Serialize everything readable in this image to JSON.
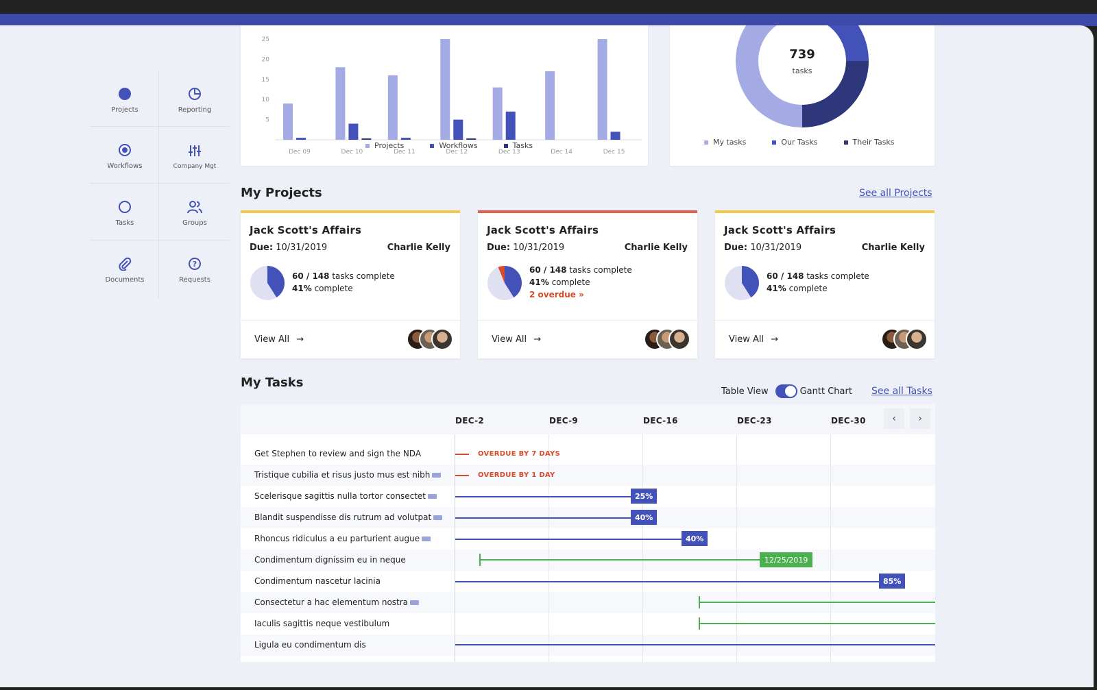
{
  "colors": {
    "accent": "#4352b8",
    "light": "#a4abe4",
    "dark": "#2e3779",
    "overdue": "#d84a2a",
    "green": "#4caf50",
    "yellow": "#f2c94c",
    "red": "#e05d4b"
  },
  "sidebar": {
    "items": [
      {
        "label": "Projects",
        "icon": "projects-dot-icon"
      },
      {
        "label": "Reporting",
        "icon": "pie-chart-icon"
      },
      {
        "label": "Workflows",
        "icon": "target-icon"
      },
      {
        "label": "Company Mgt",
        "icon": "sliders-icon"
      },
      {
        "label": "Tasks",
        "icon": "circle-icon"
      },
      {
        "label": "Groups",
        "icon": "users-icon"
      },
      {
        "label": "Documents",
        "icon": "paperclip-icon"
      },
      {
        "label": "Requests",
        "icon": "question-icon"
      }
    ]
  },
  "chart_data": [
    {
      "type": "bar",
      "categories": [
        "Dec 09",
        "Dec 10",
        "Dec 11",
        "Dec 12",
        "Dec 13",
        "Dec 14",
        "Dec 15"
      ],
      "series": [
        {
          "name": "Projects",
          "values": [
            9,
            18,
            16,
            25,
            13,
            17,
            25
          ]
        },
        {
          "name": "Workflows",
          "values": [
            0.5,
            4,
            0.5,
            5,
            7,
            0,
            2
          ]
        },
        {
          "name": "Tasks",
          "values": [
            0,
            0.3,
            0,
            0.3,
            0,
            0,
            0
          ]
        }
      ],
      "ylim": [
        0,
        25
      ],
      "yticks": [
        "5",
        "10",
        "15",
        "20",
        "25"
      ],
      "legend": "bottom"
    },
    {
      "type": "pie",
      "center_value": "739",
      "center_label": "tasks",
      "labels": [
        "My tasks",
        "Our Tasks",
        "Their Tasks"
      ],
      "values": [
        50,
        25,
        25
      ],
      "legend": "bottom"
    }
  ],
  "projects": {
    "title": "My Projects",
    "see_all": "See all Projects",
    "cards": [
      {
        "title": "Jack Scott's Affairs",
        "due_label": "Due:",
        "due": "10/31/2019",
        "owner": "Charlie Kelly",
        "tasks_done": "60 / 148",
        "tasks_text": "tasks complete",
        "percent": "41%",
        "percent_text": "complete",
        "overdue": "",
        "view": "View All",
        "progress": 0.41
      },
      {
        "title": "Jack Scott's Affairs",
        "due_label": "Due:",
        "due": "10/31/2019",
        "owner": "Charlie Kelly",
        "tasks_done": "60 / 148",
        "tasks_text": "tasks complete",
        "percent": "41%",
        "percent_text": "complete",
        "overdue": "2 overdue »",
        "view": "View All",
        "progress": 0.41
      },
      {
        "title": "Jack Scott's Affairs",
        "due_label": "Due:",
        "due": "10/31/2019",
        "owner": "Charlie Kelly",
        "tasks_done": "60 / 148",
        "tasks_text": "tasks complete",
        "percent": "41%",
        "percent_text": "complete",
        "overdue": "",
        "view": "View All",
        "progress": 0.41
      }
    ]
  },
  "tasks": {
    "title": "My Tasks",
    "table_view": "Table View",
    "gantt_chart": "Gantt Chart",
    "see_all": "See all Tasks",
    "dates": [
      "DEC-2",
      "DEC-9",
      "DEC-16",
      "DEC-23",
      "DEC-30"
    ],
    "rows": [
      {
        "name": "Get Stephen to review and sign the NDA",
        "more": false,
        "label": "OVERDUE BY 7 DAYS"
      },
      {
        "name": "Tristique cubilia et risus justo mus est nibh",
        "more": true,
        "label": "OVERDUE BY 1 DAY"
      },
      {
        "name": "Scelerisque sagittis nulla tortor consectet",
        "more": true,
        "label": "25%"
      },
      {
        "name": "Blandit suspendisse dis rutrum ad volutpat",
        "more": true,
        "label": "40%"
      },
      {
        "name": "Rhoncus ridiculus a eu parturient augue",
        "more": true,
        "label": "40%"
      },
      {
        "name": "Condimentum dignissim eu in neque",
        "more": false,
        "label": "12/25/2019"
      },
      {
        "name": "Condimentum nascetur lacinia",
        "more": false,
        "label": "85%"
      },
      {
        "name": "Consectetur a hac elementum nostra",
        "more": true,
        "label": ""
      },
      {
        "name": "Iaculis sagittis neque vestibulum",
        "more": false,
        "label": ""
      },
      {
        "name": "Ligula eu condimentum dis",
        "more": false,
        "label": ""
      }
    ]
  }
}
